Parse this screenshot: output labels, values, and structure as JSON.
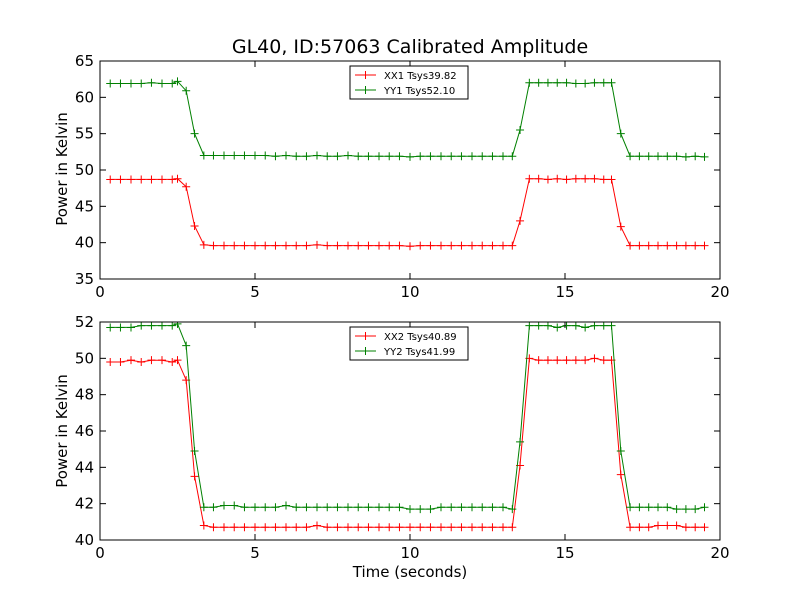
{
  "chart_data": [
    {
      "type": "line",
      "title": "GL40, ID:57063 Calibrated Amplitude",
      "xlabel": "",
      "ylabel": "Power in Kelvin",
      "xlim": [
        0,
        20
      ],
      "ylim": [
        35,
        65
      ],
      "xticks": [
        0,
        5,
        10,
        15,
        20
      ],
      "yticks": [
        35,
        40,
        45,
        50,
        55,
        60,
        65
      ],
      "grid": false,
      "legend_position": "top-center",
      "x": [
        0.33,
        0.66,
        1.0,
        1.33,
        1.66,
        2.0,
        2.33,
        2.5,
        2.78,
        3.05,
        3.35,
        3.66,
        4.0,
        4.33,
        4.66,
        5.0,
        5.33,
        5.66,
        6.0,
        6.33,
        6.66,
        7.0,
        7.33,
        7.66,
        8.0,
        8.33,
        8.66,
        9.0,
        9.33,
        9.66,
        10.0,
        10.33,
        10.66,
        11.0,
        11.33,
        11.66,
        12.0,
        12.33,
        12.66,
        13.0,
        13.3,
        13.55,
        13.85,
        14.15,
        14.45,
        14.75,
        15.05,
        15.35,
        15.65,
        15.95,
        16.25,
        16.5,
        16.8,
        17.1,
        17.4,
        17.7,
        18.0,
        18.3,
        18.6,
        18.9,
        19.2,
        19.5
      ],
      "series": [
        {
          "name": "XX1 Tsys39.82",
          "color": "#ff0000",
          "values": [
            48.7,
            48.7,
            48.7,
            48.7,
            48.7,
            48.7,
            48.7,
            48.8,
            47.7,
            42.3,
            39.7,
            39.6,
            39.6,
            39.6,
            39.6,
            39.6,
            39.6,
            39.6,
            39.6,
            39.6,
            39.6,
            39.7,
            39.6,
            39.6,
            39.6,
            39.6,
            39.6,
            39.6,
            39.6,
            39.6,
            39.5,
            39.6,
            39.6,
            39.6,
            39.6,
            39.6,
            39.6,
            39.6,
            39.6,
            39.6,
            39.6,
            43.0,
            48.8,
            48.8,
            48.7,
            48.8,
            48.7,
            48.8,
            48.8,
            48.8,
            48.7,
            48.7,
            42.2,
            39.6,
            39.6,
            39.6,
            39.6,
            39.6,
            39.6,
            39.6,
            39.6,
            39.6
          ]
        },
        {
          "name": "YY1 Tsys52.10",
          "color": "#008000",
          "values": [
            61.9,
            61.9,
            61.9,
            61.9,
            62.0,
            61.9,
            61.9,
            62.2,
            60.9,
            55.0,
            52.0,
            52.0,
            52.0,
            52.0,
            52.0,
            52.0,
            52.0,
            51.9,
            52.0,
            51.9,
            51.9,
            52.0,
            51.9,
            51.9,
            52.0,
            51.9,
            51.9,
            51.9,
            51.9,
            51.9,
            51.8,
            51.9,
            51.9,
            51.9,
            51.9,
            51.9,
            51.9,
            51.9,
            51.9,
            51.9,
            51.9,
            55.5,
            62.0,
            62.0,
            62.0,
            62.0,
            62.0,
            61.9,
            61.9,
            62.0,
            62.0,
            62.0,
            55.0,
            51.9,
            51.9,
            51.9,
            51.9,
            51.9,
            51.9,
            51.8,
            51.9,
            51.8
          ]
        }
      ]
    },
    {
      "type": "line",
      "title": "",
      "xlabel": "Time (seconds)",
      "ylabel": "Power in Kelvin",
      "xlim": [
        0,
        20
      ],
      "ylim": [
        40,
        52
      ],
      "xticks": [
        0,
        5,
        10,
        15,
        20
      ],
      "yticks": [
        40,
        42,
        44,
        46,
        48,
        50,
        52
      ],
      "grid": false,
      "legend_position": "top-center",
      "x": [
        0.33,
        0.66,
        1.0,
        1.33,
        1.66,
        2.0,
        2.33,
        2.5,
        2.78,
        3.05,
        3.35,
        3.66,
        4.0,
        4.33,
        4.66,
        5.0,
        5.33,
        5.66,
        6.0,
        6.33,
        6.66,
        7.0,
        7.33,
        7.66,
        8.0,
        8.33,
        8.66,
        9.0,
        9.33,
        9.66,
        10.0,
        10.33,
        10.66,
        11.0,
        11.33,
        11.66,
        12.0,
        12.33,
        12.66,
        13.0,
        13.3,
        13.55,
        13.85,
        14.15,
        14.45,
        14.75,
        15.05,
        15.35,
        15.65,
        15.95,
        16.25,
        16.5,
        16.8,
        17.1,
        17.4,
        17.7,
        18.0,
        18.3,
        18.6,
        18.9,
        19.2,
        19.5
      ],
      "series": [
        {
          "name": "XX2 Tsys40.89",
          "color": "#ff0000",
          "values": [
            49.8,
            49.8,
            49.9,
            49.8,
            49.9,
            49.9,
            49.8,
            49.9,
            48.8,
            43.5,
            40.8,
            40.7,
            40.7,
            40.7,
            40.7,
            40.7,
            40.7,
            40.7,
            40.7,
            40.7,
            40.7,
            40.8,
            40.7,
            40.7,
            40.7,
            40.7,
            40.7,
            40.7,
            40.7,
            40.7,
            40.7,
            40.7,
            40.7,
            40.7,
            40.7,
            40.7,
            40.7,
            40.7,
            40.7,
            40.7,
            40.7,
            44.1,
            50.0,
            49.9,
            49.9,
            49.9,
            49.9,
            49.9,
            49.9,
            50.0,
            49.9,
            49.9,
            43.6,
            40.7,
            40.7,
            40.7,
            40.8,
            40.8,
            40.8,
            40.7,
            40.7,
            40.7
          ]
        },
        {
          "name": "YY2 Tsys41.99",
          "color": "#008000",
          "values": [
            51.7,
            51.7,
            51.7,
            51.8,
            51.8,
            51.8,
            51.8,
            51.9,
            50.7,
            44.9,
            41.8,
            41.8,
            41.9,
            41.9,
            41.8,
            41.8,
            41.8,
            41.8,
            41.9,
            41.8,
            41.8,
            41.8,
            41.8,
            41.8,
            41.8,
            41.8,
            41.8,
            41.8,
            41.8,
            41.8,
            41.7,
            41.7,
            41.7,
            41.8,
            41.8,
            41.8,
            41.8,
            41.8,
            41.8,
            41.8,
            41.7,
            45.4,
            51.8,
            51.8,
            51.8,
            51.7,
            51.8,
            51.8,
            51.7,
            51.8,
            51.8,
            51.8,
            44.9,
            41.8,
            41.8,
            41.8,
            41.8,
            41.8,
            41.7,
            41.7,
            41.7,
            41.8
          ]
        }
      ]
    }
  ]
}
